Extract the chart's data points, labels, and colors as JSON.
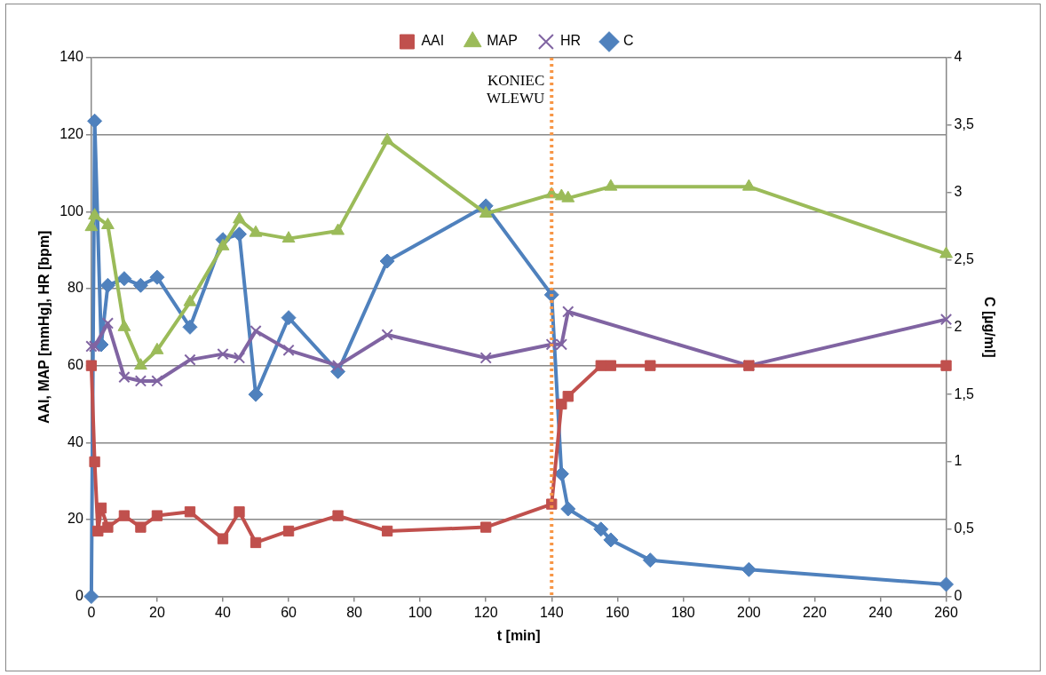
{
  "chart_data": {
    "type": "line",
    "xlabel": "t [min]",
    "ylabel": "AAI, MAP [mmHg], HR [bpm]",
    "y2label": "C [µg/ml]",
    "xlim": [
      0,
      260
    ],
    "xticks": [
      0,
      20,
      40,
      60,
      80,
      100,
      120,
      140,
      160,
      180,
      200,
      220,
      240,
      260
    ],
    "ylim": [
      0,
      140
    ],
    "yticks": [
      0,
      20,
      40,
      60,
      80,
      100,
      120,
      140
    ],
    "y2lim": [
      0,
      4
    ],
    "y2ticks": [
      0,
      {
        "value": 0.5,
        "label": "0,5"
      },
      1,
      {
        "value": 1.5,
        "label": "1,5"
      },
      2,
      {
        "value": 2.5,
        "label": "2,5"
      },
      3,
      {
        "value": 3.5,
        "label": "3,5"
      },
      4
    ],
    "grid": "y",
    "legend": "top",
    "series": [
      {
        "name": "AAI",
        "color": "#c0504d",
        "marker": "square",
        "x": [
          0,
          1,
          2,
          3,
          5,
          10,
          15,
          20,
          30,
          40,
          45,
          50,
          60,
          75,
          90,
          120,
          140,
          143,
          145,
          155,
          158,
          170,
          200,
          260
        ],
        "values": [
          60,
          35,
          17,
          23,
          18,
          21,
          18,
          21,
          22,
          15,
          22,
          14,
          17,
          21,
          17,
          18,
          24,
          50,
          52,
          60,
          60,
          60,
          60,
          60
        ]
      },
      {
        "name": "MAP",
        "color": "#9bbb59",
        "marker": "triangle",
        "x": [
          0,
          1,
          5,
          10,
          15,
          20,
          30,
          40,
          45,
          50,
          60,
          75,
          90,
          120,
          140,
          143,
          145,
          158,
          200,
          260
        ],
        "values": [
          96,
          99,
          96.5,
          70,
          60,
          64,
          76.5,
          91,
          98,
          94.5,
          93,
          95,
          118.5,
          99.5,
          104.5,
          104,
          103.5,
          106.5,
          106.5,
          89
        ]
      },
      {
        "name": "HR",
        "color": "#8064a2",
        "marker": "cross",
        "x": [
          0,
          1,
          5,
          10,
          15,
          20,
          30,
          40,
          45,
          50,
          60,
          75,
          90,
          120,
          140,
          143,
          145,
          200,
          260
        ],
        "values": [
          65,
          65,
          71,
          57,
          56,
          56,
          61.5,
          63,
          62,
          69,
          64,
          60,
          68,
          62,
          65.5,
          65.5,
          74,
          60,
          72
        ]
      },
      {
        "name": "C",
        "color": "#4f81bd",
        "marker": "diamond",
        "axis": "y2",
        "x": [
          0,
          1,
          3,
          5,
          10,
          15,
          20,
          30,
          40,
          45,
          50,
          60,
          75,
          90,
          120,
          140,
          143,
          145,
          155,
          158,
          170,
          200,
          260
        ],
        "values": [
          0,
          3.53,
          1.87,
          2.31,
          2.36,
          2.31,
          2.37,
          2.0,
          2.65,
          2.69,
          1.5,
          2.07,
          1.67,
          2.49,
          2.9,
          2.24,
          0.91,
          0.65,
          0.5,
          0.42,
          0.27,
          0.2,
          0.09
        ]
      }
    ],
    "ref_lines": [
      {
        "axis": "x",
        "value": 140,
        "label": "KONIEC WLEWU",
        "color": "#f79646",
        "line_style": "dotted"
      }
    ]
  }
}
